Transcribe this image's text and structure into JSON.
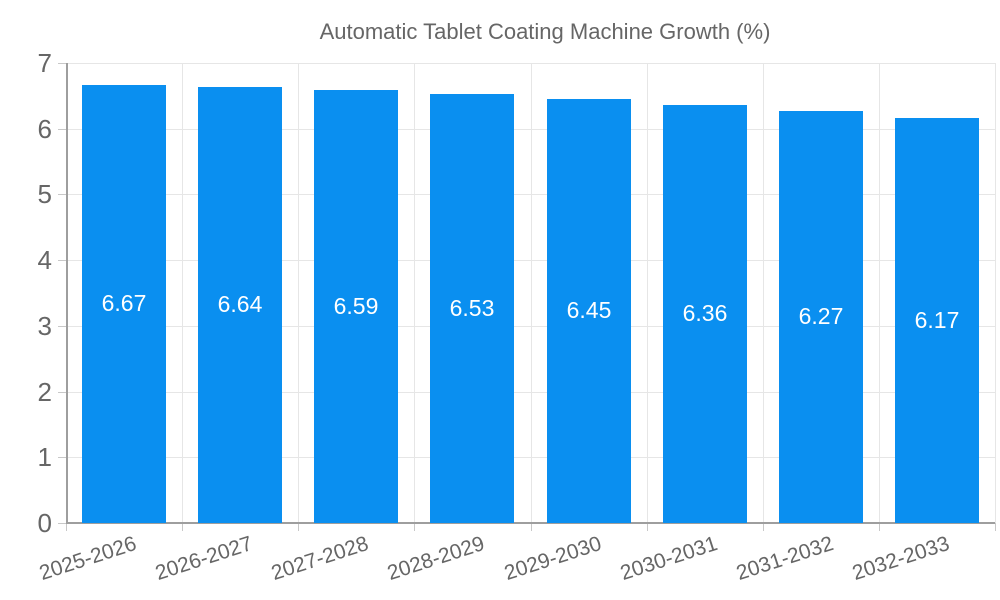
{
  "chart_data": {
    "type": "bar",
    "title": "Automatic Tablet Coating Machine Growth (%)",
    "categories": [
      "2025-2026",
      "2026-2027",
      "2027-2028",
      "2028-2029",
      "2029-2030",
      "2030-2031",
      "2031-2032",
      "2032-2033"
    ],
    "values": [
      6.67,
      6.64,
      6.59,
      6.53,
      6.45,
      6.36,
      6.27,
      6.17
    ],
    "value_labels": [
      "6.67",
      "6.64",
      "6.59",
      "6.53",
      "6.45",
      "6.36",
      "6.27",
      "6.17"
    ],
    "xlabel": "",
    "ylabel": "",
    "ylim": [
      0,
      7
    ],
    "yticks": [
      0,
      1,
      2,
      3,
      4,
      5,
      6,
      7
    ],
    "grid": true,
    "legend_position": "top",
    "legend_entries": [
      "Automatic Tablet Coating Machine Growth (%)"
    ],
    "colors": {
      "bar": "#0a8ff0",
      "axis_line": "#9e9e9e",
      "gridline": "#e6e6e6",
      "tick_mark": "#c8c8c8",
      "tick_text": "#666666",
      "legend_text": "#666666",
      "bar_label_text": "#ffffff"
    }
  }
}
